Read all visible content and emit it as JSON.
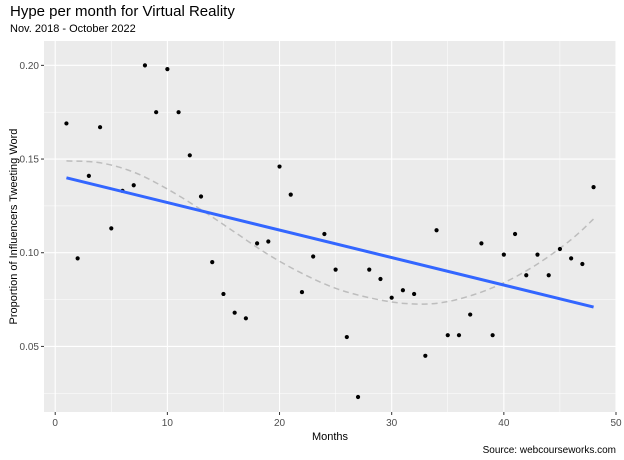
{
  "chart_data": {
    "type": "scatter",
    "title": "Hype per month for Virtual Reality",
    "subtitle": "Nov. 2018 - October 2022",
    "xlabel": "Months",
    "ylabel": "Proportion of Influencers Tweeting Word",
    "caption": "Source: webcourseworks.com",
    "xlim": [
      -1,
      50
    ],
    "ylim": [
      0.015,
      0.213
    ],
    "x_ticks": [
      0,
      10,
      20,
      30,
      40,
      50
    ],
    "y_ticks": [
      0.05,
      0.1,
      0.15,
      0.2
    ],
    "x_tick_labels": [
      "0",
      "10",
      "20",
      "30",
      "40",
      "50"
    ],
    "y_tick_labels": [
      "0.05",
      "0.10",
      "0.15",
      "0.20"
    ],
    "grid": true,
    "legend": "none",
    "colors": {
      "panel": "#ebebeb",
      "grid": "#ffffff",
      "points": "#000000",
      "trend": "#3366ff",
      "smooth": "#bdbdbd"
    },
    "points": {
      "x": [
        1,
        2,
        3,
        4,
        5,
        6,
        7,
        8,
        9,
        10,
        11,
        12,
        13,
        14,
        15,
        16,
        17,
        18,
        19,
        20,
        21,
        22,
        23,
        24,
        25,
        26,
        27,
        28,
        29,
        30,
        31,
        32,
        33,
        34,
        35,
        36,
        37,
        38,
        39,
        40,
        41,
        42,
        43,
        44,
        45,
        46,
        47,
        48
      ],
      "y": [
        0.169,
        0.097,
        0.141,
        0.167,
        0.113,
        0.133,
        0.136,
        0.2,
        0.175,
        0.198,
        0.175,
        0.152,
        0.13,
        0.095,
        0.078,
        0.068,
        0.065,
        0.105,
        0.106,
        0.146,
        0.131,
        0.079,
        0.098,
        0.11,
        0.091,
        0.055,
        0.023,
        0.091,
        0.086,
        0.076,
        0.08,
        0.078,
        0.045,
        0.112,
        0.056,
        0.056,
        0.067,
        0.105,
        0.056,
        0.099,
        0.11,
        0.088,
        0.099,
        0.088,
        0.102,
        0.097,
        0.094,
        0.135
      ]
    },
    "linear_fit": {
      "x": [
        1,
        48
      ],
      "y": [
        0.14,
        0.071
      ]
    },
    "smooth_fit": {
      "x": [
        1,
        4,
        7,
        10,
        13,
        16,
        19,
        22,
        25,
        28,
        31,
        34,
        37,
        40,
        43,
        46,
        48
      ],
      "y": [
        0.149,
        0.148,
        0.143,
        0.134,
        0.123,
        0.111,
        0.099,
        0.089,
        0.081,
        0.076,
        0.073,
        0.073,
        0.077,
        0.084,
        0.094,
        0.107,
        0.118
      ]
    }
  }
}
